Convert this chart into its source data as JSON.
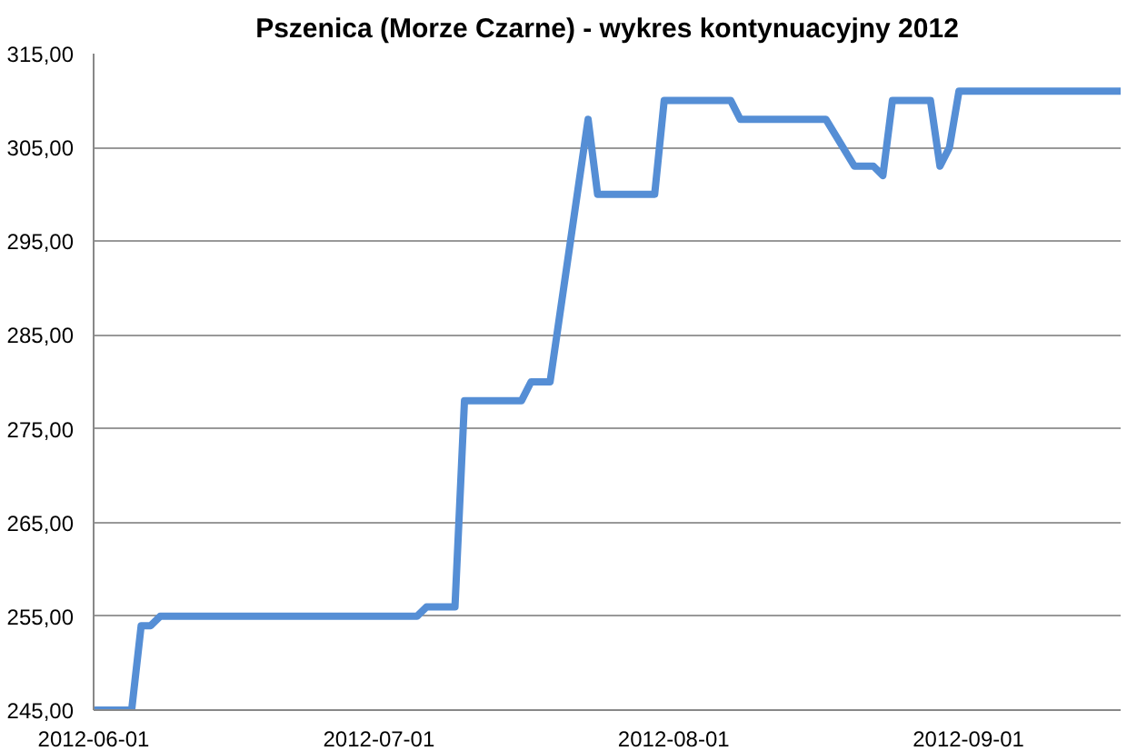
{
  "chart_data": {
    "type": "line",
    "title": "Pszenica (Morze Czarne) - wykres kontynuacyjny 2012",
    "x": [
      "2012-06-01",
      "2012-06-05",
      "2012-06-06",
      "2012-06-07",
      "2012-06-08",
      "2012-07-05",
      "2012-07-06",
      "2012-07-09",
      "2012-07-10",
      "2012-07-16",
      "2012-07-17",
      "2012-07-19",
      "2012-07-23",
      "2012-07-24",
      "2012-07-30",
      "2012-07-31",
      "2012-08-07",
      "2012-08-08",
      "2012-08-17",
      "2012-08-20",
      "2012-08-22",
      "2012-08-23",
      "2012-08-24",
      "2012-08-28",
      "2012-08-29",
      "2012-08-30",
      "2012-08-31",
      "2012-09-17"
    ],
    "series": [
      {
        "color": "#558ed5",
        "values": [
          245,
          245,
          254,
          254,
          255,
          255,
          256,
          256,
          278,
          278,
          280,
          280,
          308,
          300,
          300,
          310,
          310,
          308,
          308,
          303,
          303,
          302,
          310,
          310,
          303,
          305,
          311,
          311
        ]
      }
    ],
    "xlim": [
      "2012-06-01",
      "2012-09-17"
    ],
    "xticks": [
      "2012-06-01",
      "2012-07-01",
      "2012-08-01",
      "2012-09-01"
    ],
    "ylim": [
      245,
      315
    ],
    "yticks": [
      {
        "value": 245,
        "label": "245,00"
      },
      {
        "value": 255,
        "label": "255,00"
      },
      {
        "value": 265,
        "label": "265,00"
      },
      {
        "value": 275,
        "label": "275,00"
      },
      {
        "value": 285,
        "label": "285,00"
      },
      {
        "value": 295,
        "label": "295,00"
      },
      {
        "value": 305,
        "label": "305,00"
      },
      {
        "value": 315,
        "label": "315,00"
      }
    ],
    "grid": "y",
    "marker": "none",
    "line_style": "solid"
  }
}
